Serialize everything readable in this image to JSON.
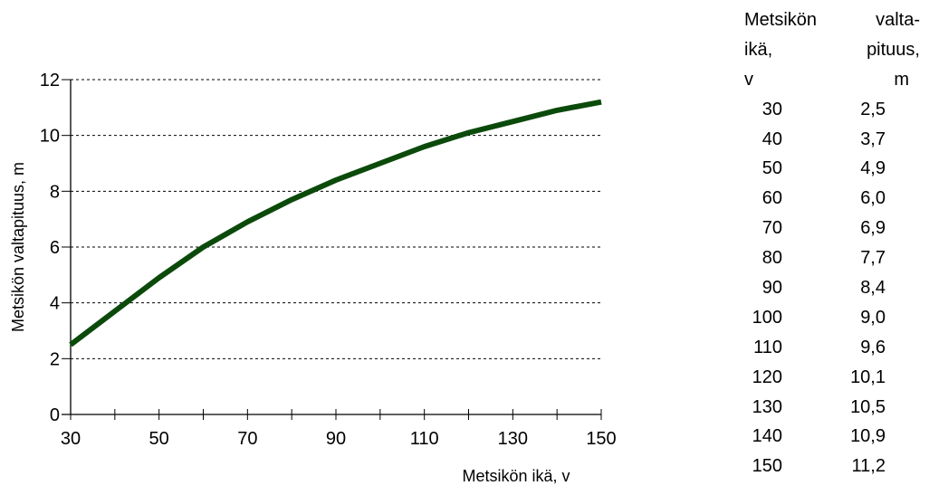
{
  "chart_data": {
    "type": "line",
    "title": "",
    "xlabel": "Metsikön ikä, v",
    "ylabel": "Metsikön valtapituus, m",
    "xlim": [
      30,
      150
    ],
    "ylim": [
      0,
      12
    ],
    "x_ticks": [
      30,
      50,
      70,
      90,
      110,
      130,
      150
    ],
    "y_ticks": [
      0,
      2,
      4,
      6,
      8,
      10,
      12
    ],
    "grid": "horizontal dashed",
    "series": [
      {
        "color": "#0b4a0b",
        "x": [
          30,
          40,
          50,
          60,
          70,
          80,
          90,
          100,
          110,
          120,
          130,
          140,
          150
        ],
        "y": [
          2.5,
          3.7,
          4.9,
          6.0,
          6.9,
          7.7,
          8.4,
          9.0,
          9.6,
          10.1,
          10.5,
          10.9,
          11.2
        ]
      }
    ]
  },
  "table": {
    "header": {
      "line1_left": "Metsikön",
      "line1_right": "valta-",
      "line2_left": "ikä,",
      "line2_right": "pituus,",
      "line3_left": "v",
      "line3_right": "m"
    },
    "rows": [
      {
        "age": "30",
        "height": "2,5"
      },
      {
        "age": "40",
        "height": "3,7"
      },
      {
        "age": "50",
        "height": "4,9"
      },
      {
        "age": "60",
        "height": "6,0"
      },
      {
        "age": "70",
        "height": "6,9"
      },
      {
        "age": "80",
        "height": "7,7"
      },
      {
        "age": "90",
        "height": "8,4"
      },
      {
        "age": "100",
        "height": "9,0"
      },
      {
        "age": "110",
        "height": "9,6"
      },
      {
        "age": "120",
        "height": "10,1"
      },
      {
        "age": "130",
        "height": "10,5"
      },
      {
        "age": "140",
        "height": "10,9"
      },
      {
        "age": "150",
        "height": "11,2"
      }
    ]
  }
}
